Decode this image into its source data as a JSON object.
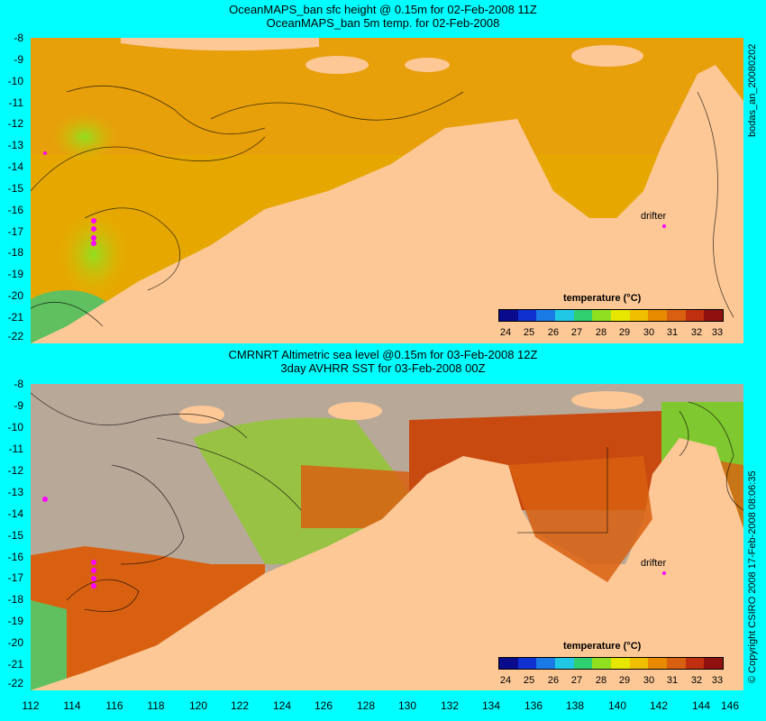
{
  "top_panel": {
    "title_line1": "OceanMAPS_ban sfc height @ 0.15m for 02-Feb-2008 11Z",
    "title_line2": "OceanMAPS_ban 5m temp. for 02-Feb-2008",
    "y_ticks": [
      "-8",
      "-9",
      "-10",
      "-11",
      "-12",
      "-13",
      "-14",
      "-15",
      "-16",
      "-17",
      "-18",
      "-19",
      "-20",
      "-21",
      "-22"
    ],
    "side_label": "bodas_an_20080202",
    "drifter_label": "drifter"
  },
  "bottom_panel": {
    "title_line1": "CMRNRT Altimetric sea level  @0.15m  for 03-Feb-2008 12Z",
    "title_line2": "3day AVHRR SST for 03-Feb-2008 00Z",
    "y_ticks": [
      "-8",
      "-9",
      "-10",
      "-11",
      "-12",
      "-13",
      "-14",
      "-15",
      "-16",
      "-17",
      "-18",
      "-19",
      "-20",
      "-21",
      "-22"
    ],
    "side_label": "© Copyright CSIRO 2008  17-Feb-2008 08:06:35",
    "drifter_label": "drifter"
  },
  "x_ticks": [
    "112",
    "114",
    "116",
    "118",
    "120",
    "122",
    "124",
    "126",
    "128",
    "130",
    "132",
    "134",
    "136",
    "138",
    "140",
    "142",
    "144",
    "146"
  ],
  "colorbar": {
    "title": "temperature (°C)",
    "ticks": [
      "24",
      "25",
      "26",
      "27",
      "28",
      "29",
      "30",
      "31",
      "32",
      "33"
    ],
    "colors": [
      "#0a0a8c",
      "#1030d0",
      "#1a7ae6",
      "#20c8e6",
      "#30d070",
      "#90e020",
      "#e6e600",
      "#f0c000",
      "#e88a00",
      "#d86010",
      "#c03010",
      "#901010"
    ]
  },
  "colors": {
    "background": "#00ffff",
    "land": "#fdc896",
    "no_data": "#b8a898",
    "drifter": "#ff00ff"
  }
}
